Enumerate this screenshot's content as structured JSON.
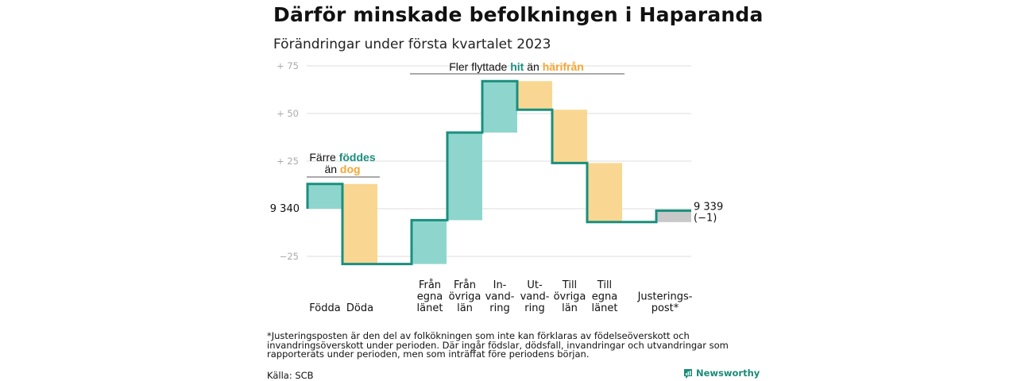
{
  "title": "Därför minskade befolkningen i Haparanda",
  "subtitle": "Förändringar under första kvartalet 2023",
  "colors": {
    "teal": "#1a8f7e",
    "teal_fill": "#8ed6cd",
    "orange": "#f3a733",
    "orange_fill": "#f9d792",
    "gray_fill": "#c8c8c8",
    "grid": "#dddddd"
  },
  "chart_data": {
    "type": "waterfall",
    "baseline": 9340,
    "ylim": [
      -30,
      75
    ],
    "y_ticks": [
      {
        "value": 75,
        "label": "+ 75"
      },
      {
        "value": 50,
        "label": "+ 50"
      },
      {
        "value": 25,
        "label": "+ 25"
      },
      {
        "value": 0,
        "label": "9 340"
      },
      {
        "value": -25,
        "label": "−25"
      }
    ],
    "steps": [
      {
        "label_lines": [
          "Födda"
        ],
        "value": 13,
        "direction": "increase"
      },
      {
        "label_lines": [
          "Döda"
        ],
        "value": -42,
        "direction": "decrease"
      },
      {
        "label_lines": [
          "Från",
          "egna",
          "länet"
        ],
        "value": 23,
        "direction": "increase"
      },
      {
        "label_lines": [
          "Från",
          "övriga",
          "län"
        ],
        "value": 46,
        "direction": "increase"
      },
      {
        "label_lines": [
          "In-",
          "vand-",
          "ring"
        ],
        "value": 27,
        "direction": "increase"
      },
      {
        "label_lines": [
          "Ut-",
          "vand-",
          "ring"
        ],
        "value": -15,
        "direction": "decrease"
      },
      {
        "label_lines": [
          "Till",
          "övriga",
          "län"
        ],
        "value": -28,
        "direction": "decrease"
      },
      {
        "label_lines": [
          "Till",
          "egna",
          "länet"
        ],
        "value": -31,
        "direction": "decrease"
      },
      {
        "label_lines": [
          "Justerings-",
          "post*"
        ],
        "value": 6,
        "direction": "adjustment"
      }
    ],
    "end_label": "9 339",
    "end_change": "(−1)",
    "annotations": [
      {
        "parts": [
          {
            "text": "Färre ",
            "style": "plain"
          },
          {
            "text": "föddes",
            "style": "teal"
          }
        ],
        "second_line": [
          {
            "text": "än ",
            "style": "plain"
          },
          {
            "text": "dog",
            "style": "orange"
          }
        ]
      },
      {
        "parts": [
          {
            "text": "Fler flyttade ",
            "style": "plain"
          },
          {
            "text": "hit",
            "style": "teal"
          },
          {
            "text": " än ",
            "style": "plain"
          },
          {
            "text": "härifrån",
            "style": "orange"
          }
        ]
      }
    ]
  },
  "footnote": "*Justeringsposten är den del av folkökningen som inte kan förklaras av födelseöverskott och invandringsöverskott under perioden. Där ingår födslar, dödsfall, invandringar och utvandringar som rapporterats under perioden, men som inträffat före periodens början.",
  "source": "Källa: SCB",
  "brand": "Newsworthy",
  "brand_icon": "newsworthy-logo-icon"
}
